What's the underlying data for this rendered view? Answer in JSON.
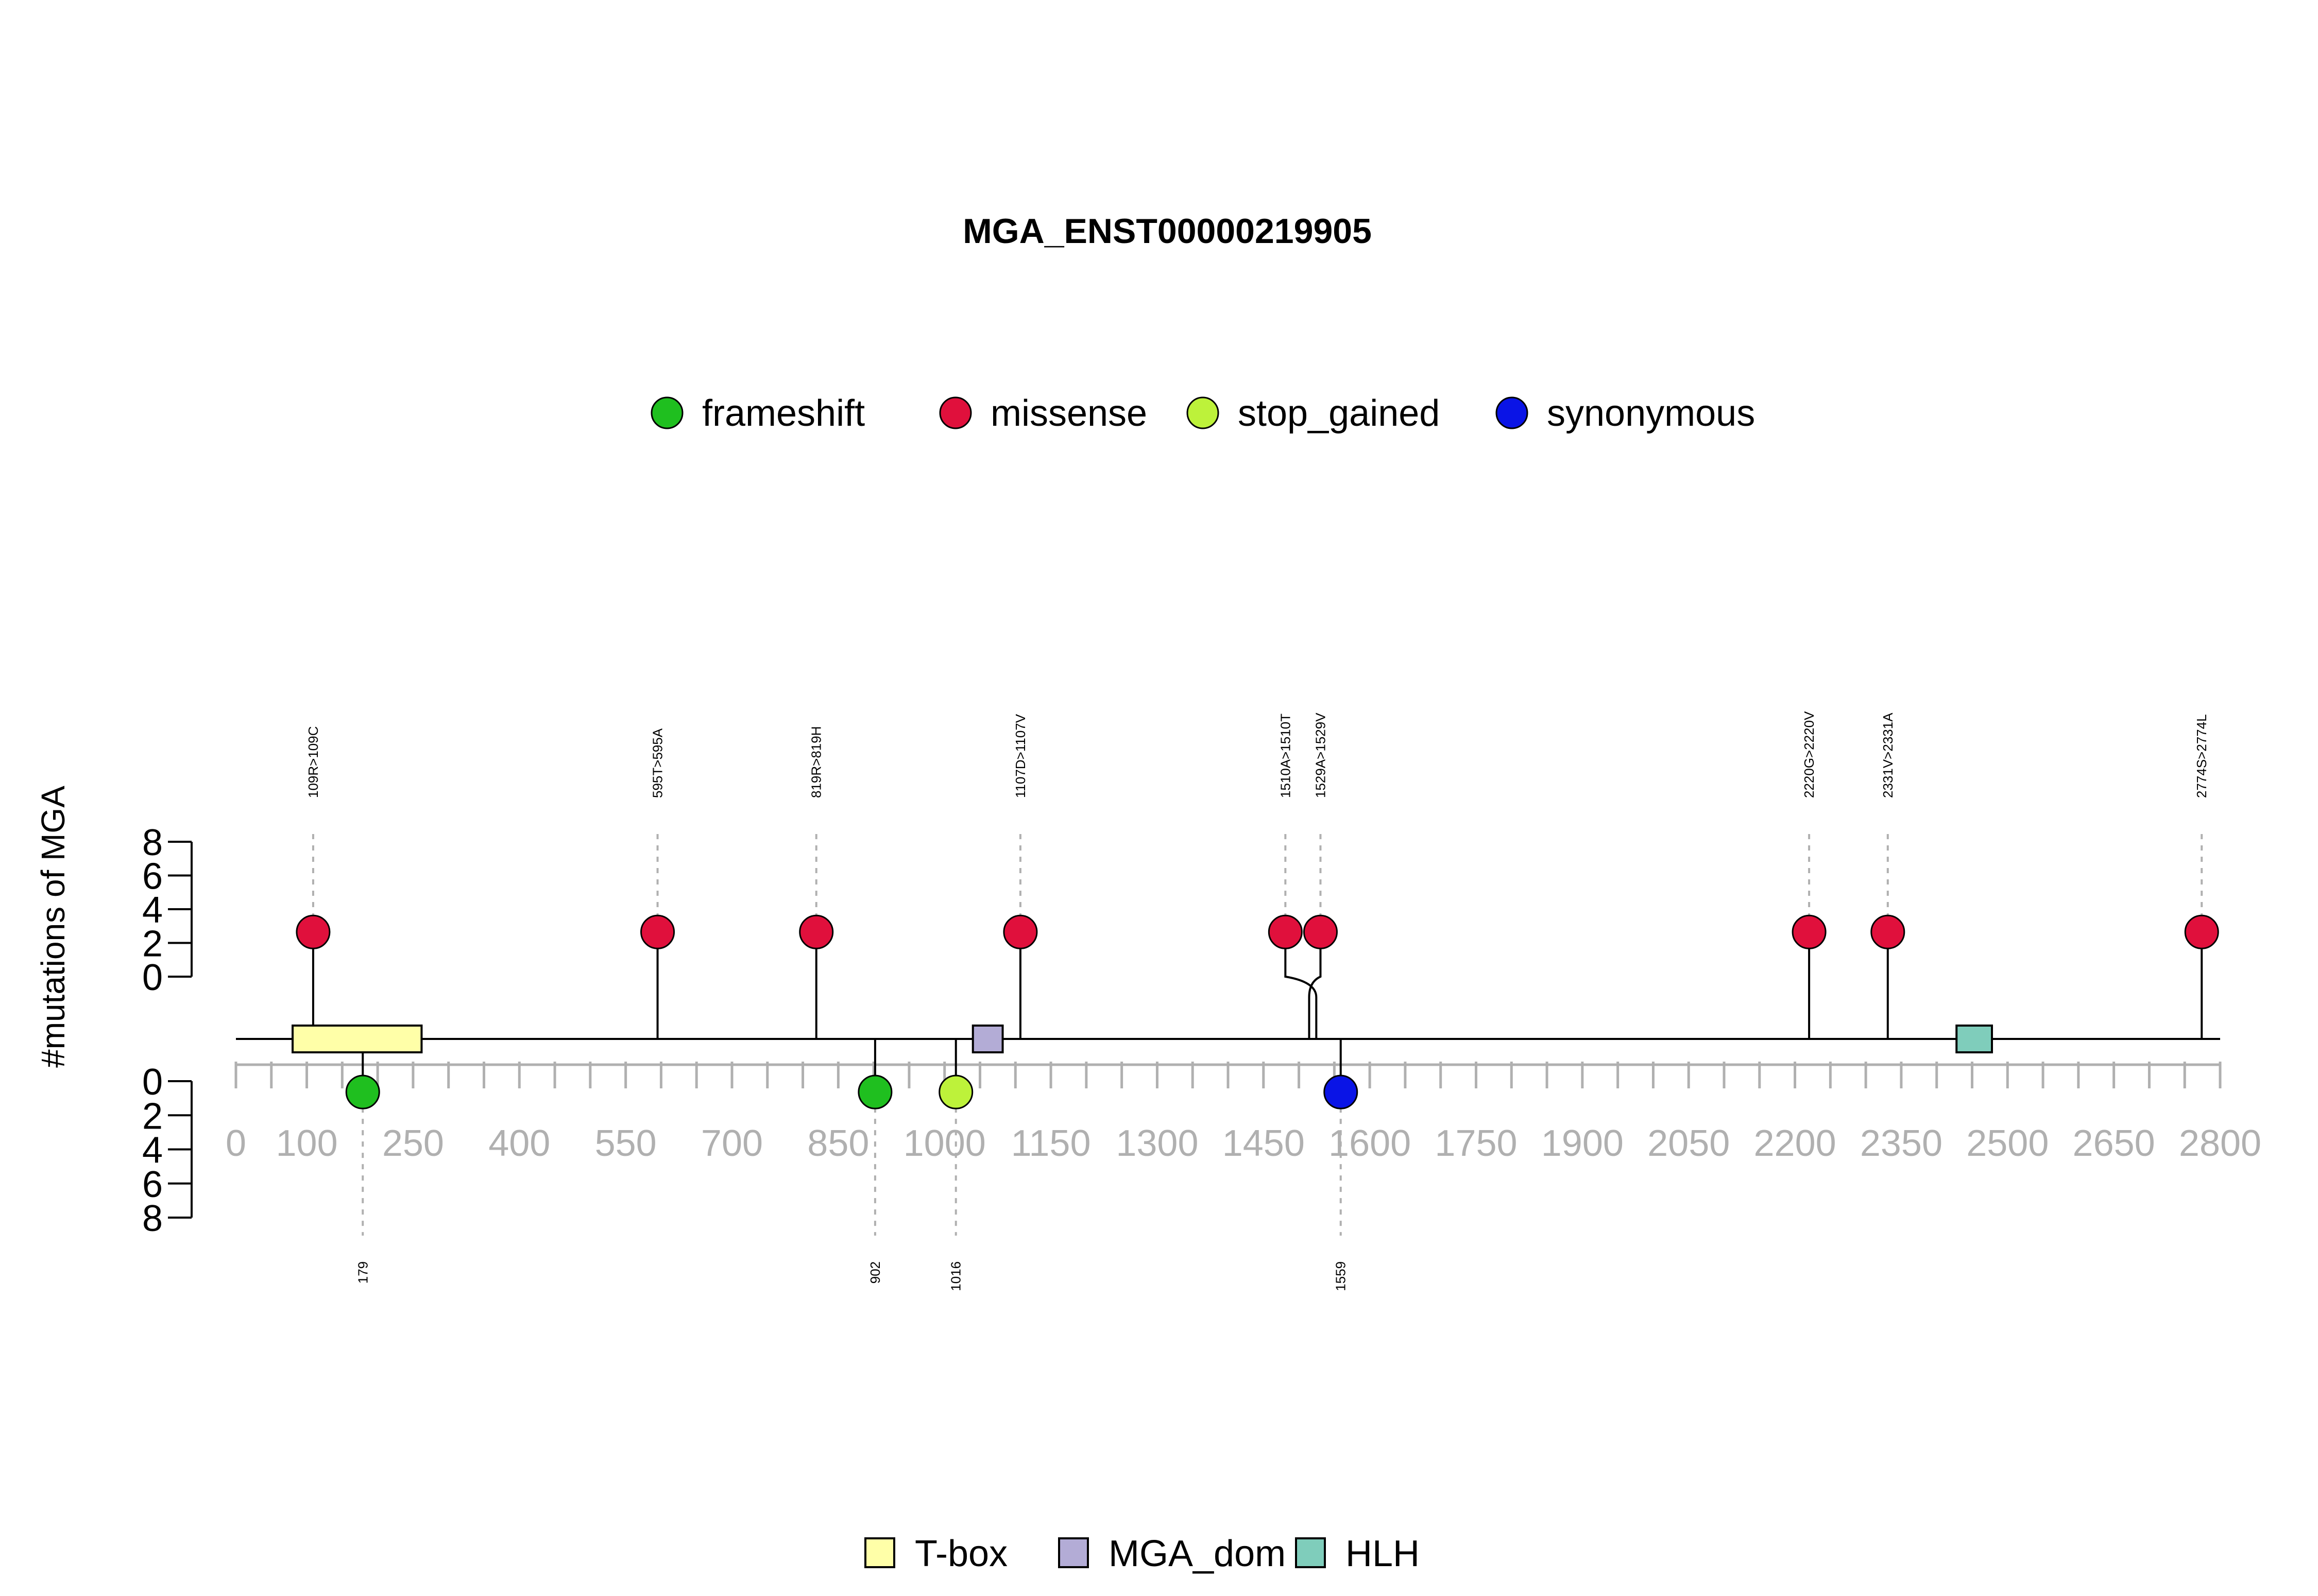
{
  "chart_data": {
    "type": "lollipop",
    "title": "MGA_ENST00000219905",
    "ylabel": "#mutations of MGA",
    "xlim": [
      0,
      2800
    ],
    "ylim_upper": [
      0,
      8
    ],
    "ylim_lower": [
      0,
      8
    ],
    "y_ticks": [
      0,
      2,
      4,
      6,
      8
    ],
    "x_ticks": [
      0,
      100,
      250,
      400,
      550,
      700,
      850,
      1000,
      1150,
      1300,
      1450,
      1600,
      1750,
      1900,
      2050,
      2200,
      2350,
      2500,
      2650,
      2800
    ],
    "x_minor_step": 50,
    "legend_mutations": [
      {
        "label": "frameshift",
        "color": "#1fbf1f"
      },
      {
        "label": "missense",
        "color": "#e0103c"
      },
      {
        "label": "stop_gained",
        "color": "#bdf23a"
      },
      {
        "label": "synonymous",
        "color": "#0a14e6"
      }
    ],
    "upper_mutations": [
      {
        "position": 109,
        "count": 1,
        "type": "missense",
        "label": "109R>109C"
      },
      {
        "position": 595,
        "count": 1,
        "type": "missense",
        "label": "595T>595A"
      },
      {
        "position": 819,
        "count": 1,
        "type": "missense",
        "label": "819R>819H"
      },
      {
        "position": 1107,
        "count": 1,
        "type": "missense",
        "label": "1107D>1107V"
      },
      {
        "position": 1510,
        "count": 1,
        "type": "missense",
        "label": "1510A>1510T"
      },
      {
        "position": 1529,
        "count": 1,
        "type": "missense",
        "label": "1529A>1529V"
      },
      {
        "position": 2220,
        "count": 1,
        "type": "missense",
        "label": "2220G>2220V"
      },
      {
        "position": 2331,
        "count": 1,
        "type": "missense",
        "label": "2331V>2331A"
      },
      {
        "position": 2774,
        "count": 1,
        "type": "missense",
        "label": "2774S>2774L"
      }
    ],
    "lower_mutations": [
      {
        "position": 179,
        "count": 1,
        "type": "frameshift",
        "label": "179"
      },
      {
        "position": 902,
        "count": 1,
        "type": "frameshift",
        "label": "902"
      },
      {
        "position": 1016,
        "count": 1,
        "type": "stop_gained",
        "label": "1016"
      },
      {
        "position": 1559,
        "count": 1,
        "type": "synonymous",
        "label": "1559"
      }
    ],
    "domains": [
      {
        "name": "T-box",
        "start": 80,
        "end": 262,
        "color": "#ffffa8"
      },
      {
        "name": "MGA_dom",
        "start": 1040,
        "end": 1082,
        "color": "#b3acd6"
      },
      {
        "name": "HLH",
        "start": 2428,
        "end": 2478,
        "color": "#7fcdbb"
      }
    ]
  }
}
